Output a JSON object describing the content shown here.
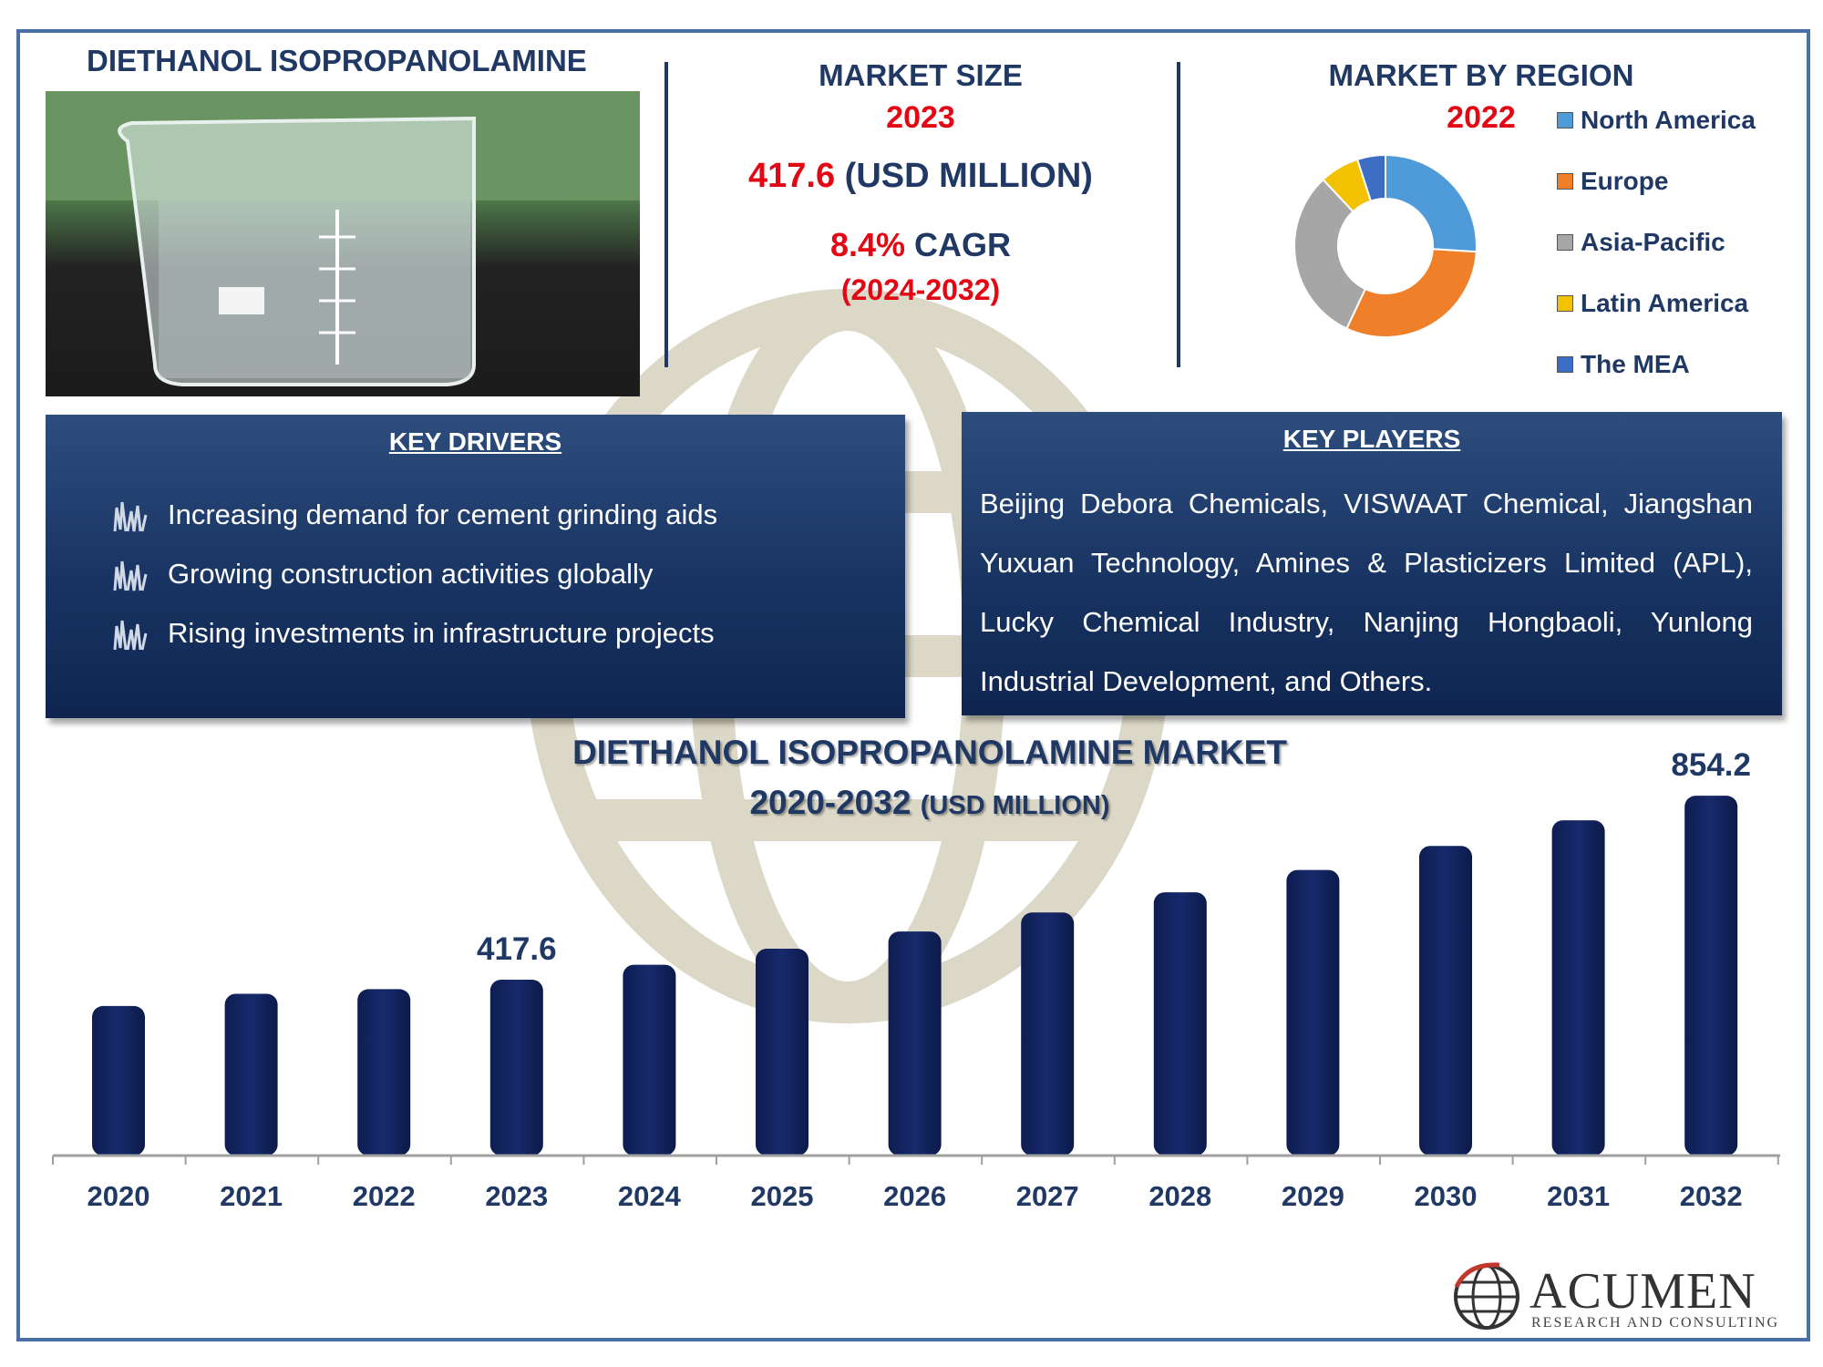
{
  "header": {
    "product_title": "DIETHANOL ISOPROPANOLAMINE"
  },
  "market_size": {
    "heading": "MARKET SIZE",
    "year": "2023",
    "value": "417.6",
    "unit": "(USD MILLION)",
    "cagr_value": "8.4%",
    "cagr_label": "CAGR",
    "cagr_period": "(2024-2032)"
  },
  "region": {
    "heading": "MARKET BY REGION",
    "year": "2022",
    "legend": [
      {
        "name": "North America",
        "color": "#4f9bd9"
      },
      {
        "name": "Europe",
        "color": "#f07f2a"
      },
      {
        "name": "Asia-Pacific",
        "color": "#a6a6a6"
      },
      {
        "name": "Latin America",
        "color": "#f2c200"
      },
      {
        "name": "The MEA",
        "color": "#3c6fc4"
      }
    ]
  },
  "key_drivers": {
    "title": "KEY DRIVERS",
    "items": [
      "Increasing demand for cement grinding aids",
      "Growing construction activities globally",
      "Rising investments in infrastructure projects"
    ]
  },
  "key_players": {
    "title": "KEY PLAYERS",
    "text": "Beijing Debora Chemicals, VISWAAT Chemical, Jiangshan Yuxuan Technology, Amines & Plasticizers Limited (APL), Lucky Chemical Industry, Nanjing Hongbaoli, Yunlong Industrial Development, and Others."
  },
  "chart_data": [
    {
      "type": "bar",
      "title": "DIETHANOL ISOPROPANOLAMINE MARKET",
      "subtitle": "2020-2032",
      "subtitle_unit": "(USD MILLION)",
      "categories": [
        "2020",
        "2021",
        "2022",
        "2023",
        "2024",
        "2025",
        "2026",
        "2027",
        "2028",
        "2029",
        "2030",
        "2031",
        "2032"
      ],
      "values": [
        355,
        384,
        395,
        417.6,
        453,
        491,
        532,
        577,
        625,
        678,
        735,
        796,
        854.2
      ],
      "data_labels": [
        {
          "category": "2023",
          "text": "417.6"
        },
        {
          "category": "2032",
          "text": "854.2"
        }
      ],
      "ylim": [
        0,
        900
      ],
      "bar_color": "#172a6b",
      "grid": false
    },
    {
      "type": "pie",
      "categories": [
        "North America",
        "Europe",
        "Asia-Pacific",
        "Latin America",
        "The MEA"
      ],
      "values": [
        26,
        31,
        31,
        7,
        5
      ],
      "colors": [
        "#4f9bd9",
        "#f07f2a",
        "#a6a6a6",
        "#f2c200",
        "#3c6fc4"
      ]
    }
  ],
  "brand": {
    "name": "ACUMEN",
    "tagline": "RESEARCH AND CONSULTING"
  }
}
